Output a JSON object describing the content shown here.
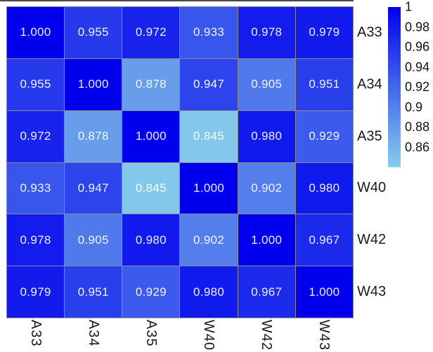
{
  "chart_data": {
    "type": "heatmap",
    "title": "",
    "categories": [
      "A33",
      "A34",
      "A35",
      "W40",
      "W42",
      "W43"
    ],
    "matrix": [
      [
        1.0,
        0.955,
        0.972,
        0.933,
        0.978,
        0.979
      ],
      [
        0.955,
        1.0,
        0.878,
        0.947,
        0.905,
        0.951
      ],
      [
        0.972,
        0.878,
        1.0,
        0.845,
        0.98,
        0.929
      ],
      [
        0.933,
        0.947,
        0.845,
        1.0,
        0.902,
        0.98
      ],
      [
        0.978,
        0.905,
        0.98,
        0.902,
        1.0,
        0.967
      ],
      [
        0.979,
        0.951,
        0.929,
        0.98,
        0.967,
        1.0
      ]
    ],
    "value_decimals": 3,
    "cell_text_color": "#f2f2fa",
    "grid_line_color": "#8c8c8c",
    "axis_label_color": "#1a1a1a",
    "colorbar": {
      "position": "right",
      "vmin": 0.84,
      "vmax": 1.0,
      "color_low": "#87CEEB",
      "color_high": "#0000EC",
      "ticks": [
        1,
        0.98,
        0.96,
        0.94,
        0.92,
        0.9,
        0.88,
        0.86
      ],
      "tick_labels": [
        "1",
        "0.98",
        "0.96",
        "0.94",
        "0.92",
        "0.9",
        "0.88",
        "0.86"
      ]
    },
    "x_tick_rotation_deg": 90,
    "grid_on": true,
    "legend_position": "none"
  }
}
